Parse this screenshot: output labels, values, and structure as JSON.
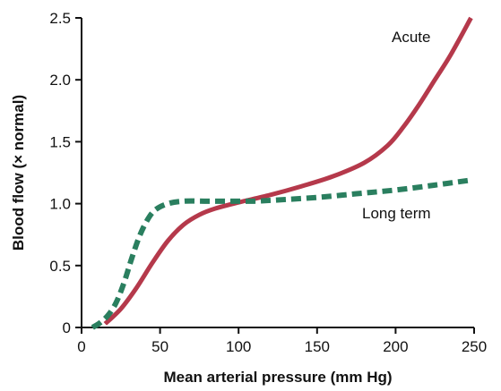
{
  "chart_data": {
    "type": "line",
    "xlabel": "Mean arterial pressure (mm Hg)",
    "ylabel": "Blood flow (× normal)",
    "xlim": [
      0,
      250
    ],
    "ylim": [
      0,
      2.5
    ],
    "x_ticks": [
      "0",
      "50",
      "100",
      "150",
      "200",
      "250"
    ],
    "y_ticks": [
      "0",
      "0.5",
      "1.0",
      "1.5",
      "2.0",
      "2.5"
    ],
    "grid": false,
    "series": [
      {
        "name": "Acute",
        "color": "#b5394b",
        "style": "solid",
        "x": [
          15,
          25,
          35,
          45,
          55,
          65,
          75,
          85,
          100,
          120,
          140,
          160,
          180,
          195,
          205,
          215,
          225,
          235,
          248
        ],
        "y": [
          0.03,
          0.15,
          0.32,
          0.52,
          0.7,
          0.83,
          0.91,
          0.96,
          1.01,
          1.07,
          1.14,
          1.22,
          1.33,
          1.47,
          1.62,
          1.8,
          2.0,
          2.2,
          2.5
        ]
      },
      {
        "name": "Long term",
        "color": "#2a7f5f",
        "style": "dashed",
        "x": [
          7,
          12,
          17,
          22,
          27,
          32,
          37,
          42,
          47,
          55,
          65,
          80,
          95,
          110,
          125,
          150,
          175,
          200,
          225,
          248
        ],
        "y": [
          0.0,
          0.04,
          0.1,
          0.2,
          0.36,
          0.56,
          0.74,
          0.87,
          0.95,
          1.0,
          1.02,
          1.02,
          1.02,
          1.02,
          1.03,
          1.05,
          1.08,
          1.11,
          1.15,
          1.19
        ]
      }
    ]
  }
}
